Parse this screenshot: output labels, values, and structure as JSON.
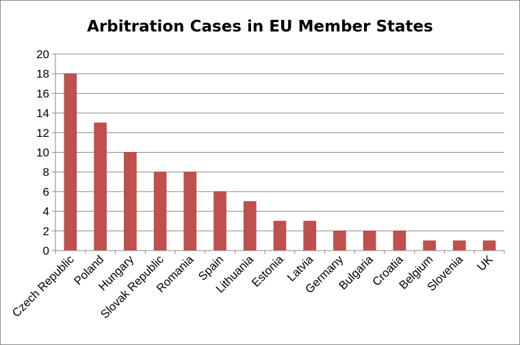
{
  "chart_data": {
    "type": "bar",
    "title": "Arbitration Cases in EU Member States",
    "xlabel": "",
    "ylabel": "",
    "categories": [
      "Czech Republic",
      "Poland",
      "Hungary",
      "Slovak Republic",
      "Romania",
      "Spain",
      "Lithuania",
      "Estonia",
      "Latvia",
      "Germany",
      "Bulgaria",
      "Croatia",
      "Belgium",
      "Slovenia",
      "UK"
    ],
    "values": [
      18,
      13,
      10,
      8,
      8,
      6,
      5,
      3,
      3,
      2,
      2,
      2,
      1,
      1,
      1
    ],
    "ylim": [
      0,
      20
    ],
    "yticks": [
      0,
      2,
      4,
      6,
      8,
      10,
      12,
      14,
      16,
      18,
      20
    ],
    "grid": true,
    "legend": "none",
    "colors": {
      "bar": "#c0504d",
      "bar_edge": "#a53f3c",
      "grid": "#868686",
      "axis": "#868686",
      "border": "#8c8c8c"
    }
  }
}
